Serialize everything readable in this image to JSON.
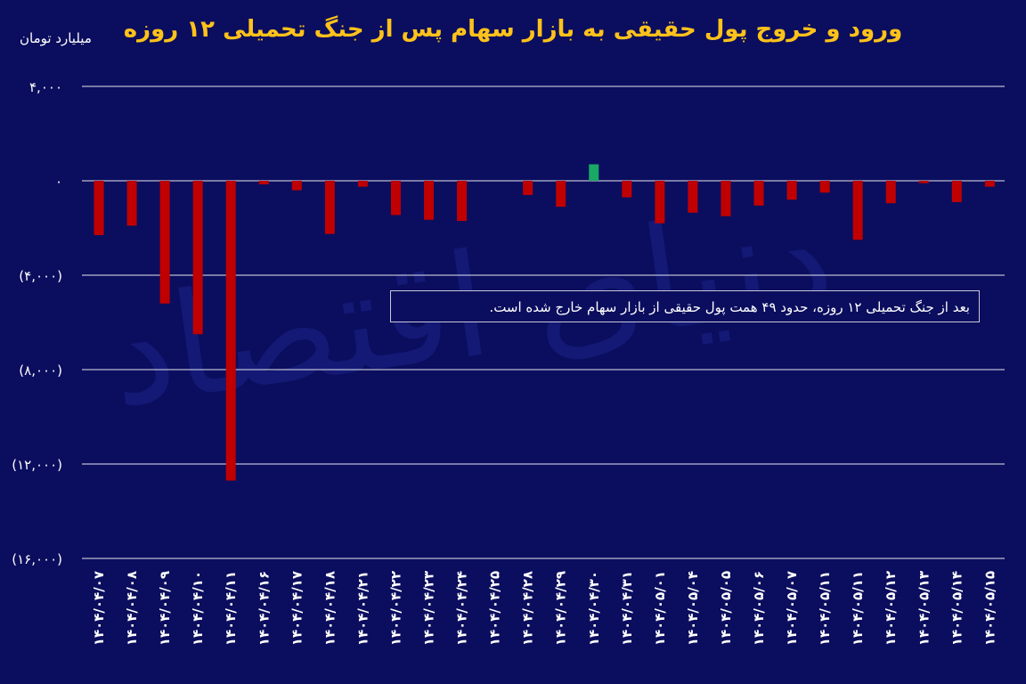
{
  "title": "ورود و خروج پول حقیقی به بازار سهام پس از جنگ تحمیلی ۱۲ روزه",
  "unit_label": "میلیارد تومان",
  "note": "بعد از جنگ تحمیلی ۱۲ روزه، حدود ۴۹ همت پول حقیقی از بازار سهام خارج شده است.",
  "watermark": "دنیای اقتصاد",
  "colors": {
    "negative": "#c00000",
    "positive": "#1aa866",
    "grid": "#e6e6f0",
    "text": "#ffffff",
    "title": "#ffc21a",
    "background": "#0b0e5e"
  },
  "chart_data": {
    "type": "bar",
    "title": "ورود و خروج پول حقیقی به بازار سهام پس از جنگ تحمیلی ۱۲ روزه",
    "ylabel": "میلیارد تومان",
    "ylim": [
      -16000,
      4000
    ],
    "yticks": [
      4000,
      0,
      -4000,
      -8000,
      -12000,
      -16000
    ],
    "ytick_labels": [
      "۴,۰۰۰",
      "۰",
      "(۴,۰۰۰)",
      "(۸,۰۰۰)",
      "(۱۲,۰۰۰)",
      "(۱۶,۰۰۰)"
    ],
    "grid": true,
    "categories": [
      "۱۴۰۴/۰۴/۰۷",
      "۱۴۰۴/۰۴/۰۸",
      "۱۴۰۴/۰۴/۰۹",
      "۱۴۰۴/۰۴/۱۰",
      "۱۴۰۴/۰۴/۱۱",
      "۱۴۰۴/۰۴/۱۶",
      "۱۴۰۴/۰۴/۱۷",
      "۱۴۰۴/۰۴/۱۸",
      "۱۴۰۴/۰۴/۲۱",
      "۱۴۰۴/۰۴/۲۲",
      "۱۴۰۴/۰۴/۲۳",
      "۱۴۰۴/۰۴/۲۴",
      "۱۴۰۴/۰۴/۲۵",
      "۱۴۰۴/۰۴/۲۸",
      "۱۴۰۴/۰۴/۲۹",
      "۱۴۰۴/۰۴/۳۰",
      "۱۴۰۴/۰۴/۳۱",
      "۱۴۰۴/۰۵/۰۱",
      "۱۴۰۴/۰۵/۰۴",
      "۱۴۰۴/۰۵/۰۵",
      "۱۴۰۴/۰۵/۰۶",
      "۱۴۰۴/۰۵/۰۷",
      "۱۴۰۴/۰۵/۱۱",
      "۱۴۰۴/۰۵/۱۱",
      "۱۴۰۴/۰۵/۱۲",
      "۱۴۰۴/۰۵/۱۳",
      "۱۴۰۴/۰۵/۱۴",
      "۱۴۰۴/۰۵/۱۵"
    ],
    "values": [
      -2300,
      -1900,
      -5200,
      -6500,
      -12700,
      -150,
      -400,
      -2250,
      -250,
      -1450,
      -1650,
      -1700,
      0,
      -600,
      -1100,
      700,
      -700,
      -1800,
      -1350,
      -1500,
      -1050,
      -800,
      -500,
      -2500,
      -950,
      -100,
      -900,
      -250
    ]
  }
}
